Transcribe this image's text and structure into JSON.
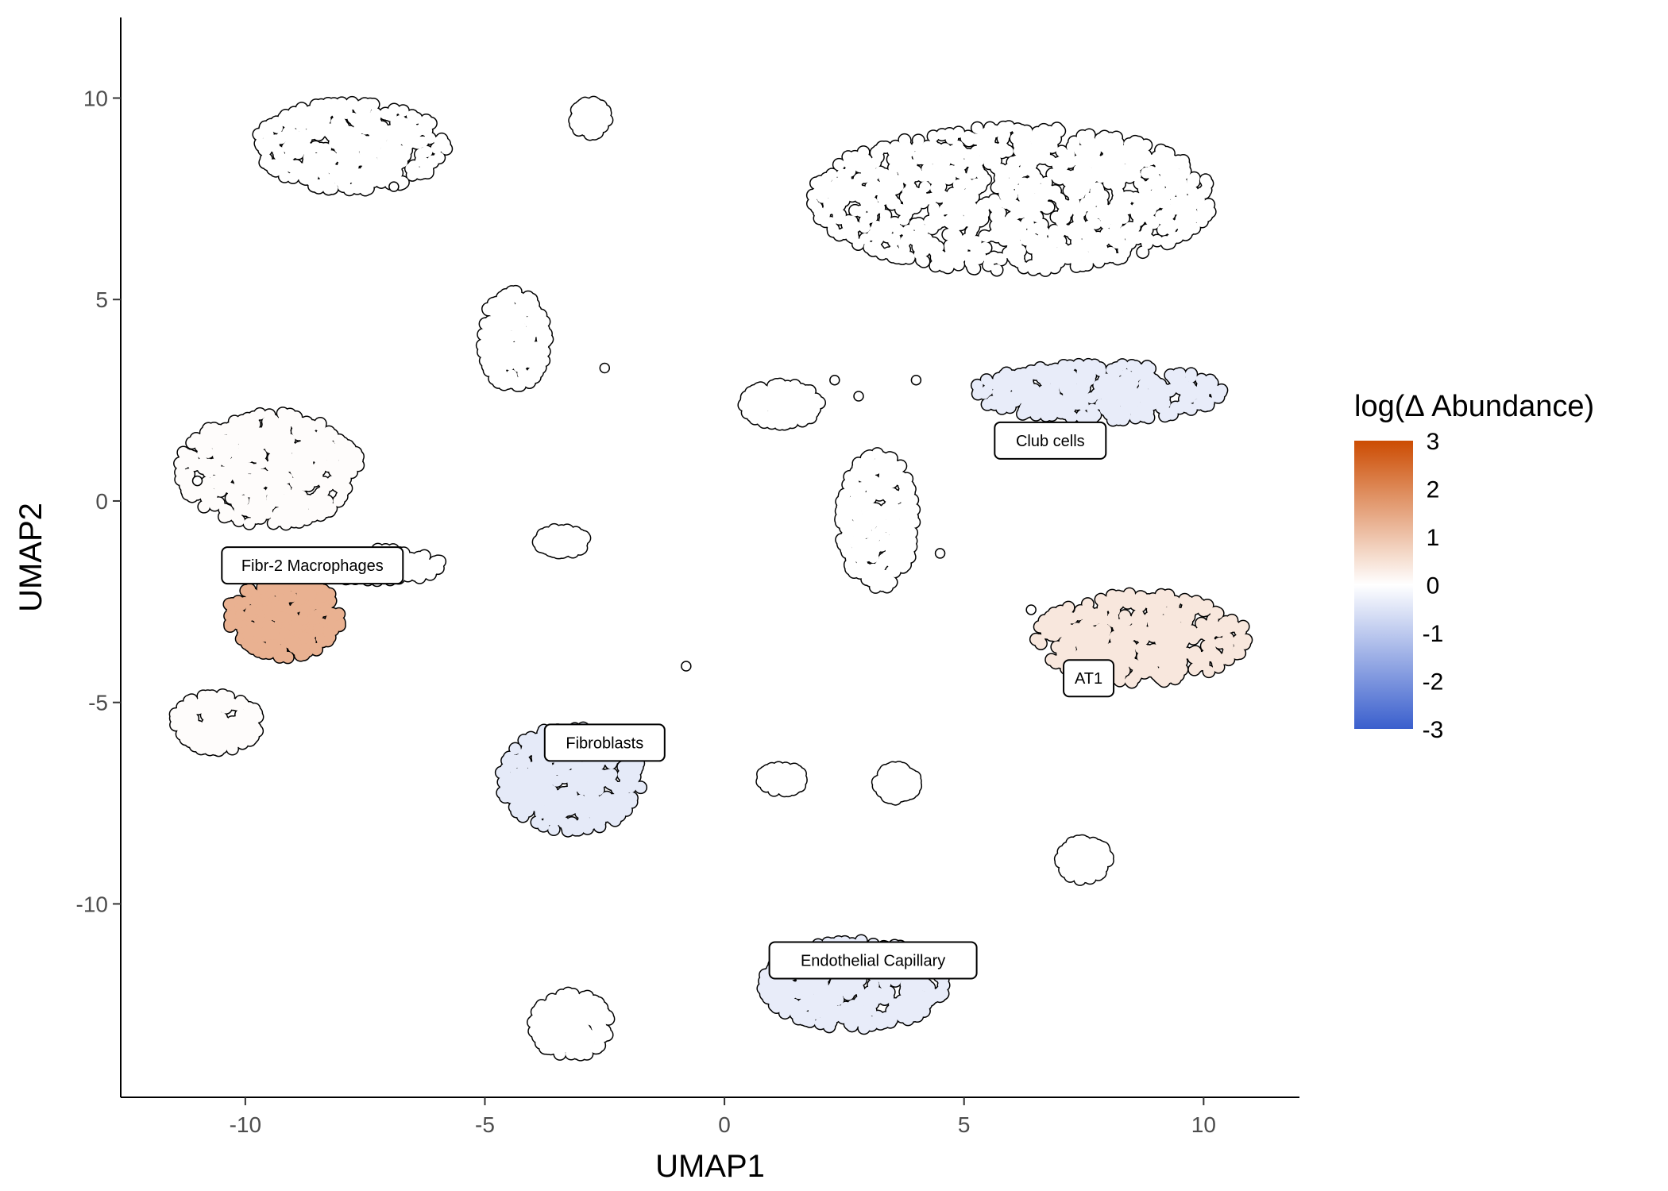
{
  "chart_data": {
    "type": "scatter",
    "xlabel": "UMAP1",
    "ylabel": "UMAP2",
    "xlim": [
      -12.6,
      12.0
    ],
    "ylim": [
      -14.8,
      12.0
    ],
    "x_ticks": [
      -10,
      -5,
      0,
      5,
      10
    ],
    "y_ticks": [
      -10,
      -5,
      0,
      5,
      10
    ],
    "grid": false,
    "legend": {
      "title": "log(Δ Abundance)",
      "placement": "right",
      "range": [
        -3,
        3
      ],
      "ticks": [
        3,
        2,
        1,
        0,
        -1,
        -2,
        -3
      ],
      "colors": {
        "low": "#3a5fcd",
        "mid": "#ffffff",
        "high": "#cc4c02"
      }
    },
    "cluster_labels": [
      {
        "text": "Fibr-2 Macrophages",
        "x": -8.6,
        "y": -1.6
      },
      {
        "text": "Club cells",
        "x": 6.8,
        "y": 1.5
      },
      {
        "text": "AT1",
        "x": 7.6,
        "y": -4.4
      },
      {
        "text": "Fibroblasts",
        "x": -2.5,
        "y": -6.0
      },
      {
        "text": "Endothelial Capillary",
        "x": 3.1,
        "y": -11.4
      }
    ],
    "clusters": [
      {
        "cx": -7.8,
        "cy": 8.8,
        "rx": 2.0,
        "ry": 1.1,
        "value": 0,
        "seed": 11
      },
      {
        "cx": -2.8,
        "cy": 9.5,
        "rx": 0.35,
        "ry": 0.4,
        "value": 0,
        "seed": 12
      },
      {
        "cx": -4.4,
        "cy": 4.0,
        "rx": 0.7,
        "ry": 1.2,
        "value": 0,
        "seed": 13
      },
      {
        "cx": 6.0,
        "cy": 7.5,
        "rx": 4.2,
        "ry": 1.8,
        "value": 0,
        "seed": 14
      },
      {
        "cx": -9.5,
        "cy": 0.8,
        "rx": 1.9,
        "ry": 1.4,
        "value": 0.05,
        "seed": 15
      },
      {
        "cx": -9.2,
        "cy": -2.9,
        "rx": 1.2,
        "ry": 1.0,
        "value": 1.3,
        "seed": 16
      },
      {
        "cx": -7.2,
        "cy": -1.6,
        "rx": 1.3,
        "ry": 0.4,
        "value": 0,
        "seed": 17
      },
      {
        "cx": -10.6,
        "cy": -5.5,
        "rx": 0.9,
        "ry": 0.7,
        "value": 0.05,
        "seed": 18
      },
      {
        "cx": -3.4,
        "cy": -1.0,
        "rx": 0.5,
        "ry": 0.3,
        "value": 0,
        "seed": 19
      },
      {
        "cx": 7.8,
        "cy": 2.7,
        "rx": 2.6,
        "ry": 0.7,
        "value": -0.35,
        "seed": 20
      },
      {
        "cx": 3.2,
        "cy": -0.5,
        "rx": 0.8,
        "ry": 1.7,
        "value": 0,
        "seed": 21
      },
      {
        "cx": 8.7,
        "cy": -3.4,
        "rx": 2.2,
        "ry": 1.1,
        "value": 0.4,
        "seed": 22
      },
      {
        "cx": -3.2,
        "cy": -6.9,
        "rx": 1.5,
        "ry": 1.3,
        "value": -0.4,
        "seed": 23
      },
      {
        "cx": 1.2,
        "cy": -6.9,
        "rx": 0.45,
        "ry": 0.3,
        "value": 0,
        "seed": 24
      },
      {
        "cx": 3.6,
        "cy": -7.0,
        "rx": 0.4,
        "ry": 0.4,
        "value": 0,
        "seed": 25
      },
      {
        "cx": 7.5,
        "cy": -8.9,
        "rx": 0.5,
        "ry": 0.5,
        "value": 0,
        "seed": 26
      },
      {
        "cx": 2.7,
        "cy": -12.0,
        "rx": 1.9,
        "ry": 1.1,
        "value": -0.35,
        "seed": 27
      },
      {
        "cx": -3.2,
        "cy": -13.0,
        "rx": 0.8,
        "ry": 0.8,
        "value": 0,
        "seed": 28
      },
      {
        "cx": 1.2,
        "cy": 2.4,
        "rx": 0.8,
        "ry": 0.5,
        "value": 0,
        "seed": 29
      }
    ],
    "outlier_points": [
      {
        "x": -2.5,
        "y": 3.3,
        "value": 0
      },
      {
        "x": -0.8,
        "y": -4.1,
        "value": 0
      },
      {
        "x": 4.5,
        "y": -1.3,
        "value": 0
      },
      {
        "x": 6.4,
        "y": -2.7,
        "value": 0
      },
      {
        "x": -11.0,
        "y": 0.5,
        "value": 0
      },
      {
        "x": 2.3,
        "y": 3.0,
        "value": 0
      },
      {
        "x": -6.9,
        "y": 7.8,
        "value": 0
      },
      {
        "x": 4.0,
        "y": 3.0,
        "value": 0
      },
      {
        "x": 2.8,
        "y": 2.6,
        "value": 0
      }
    ]
  }
}
